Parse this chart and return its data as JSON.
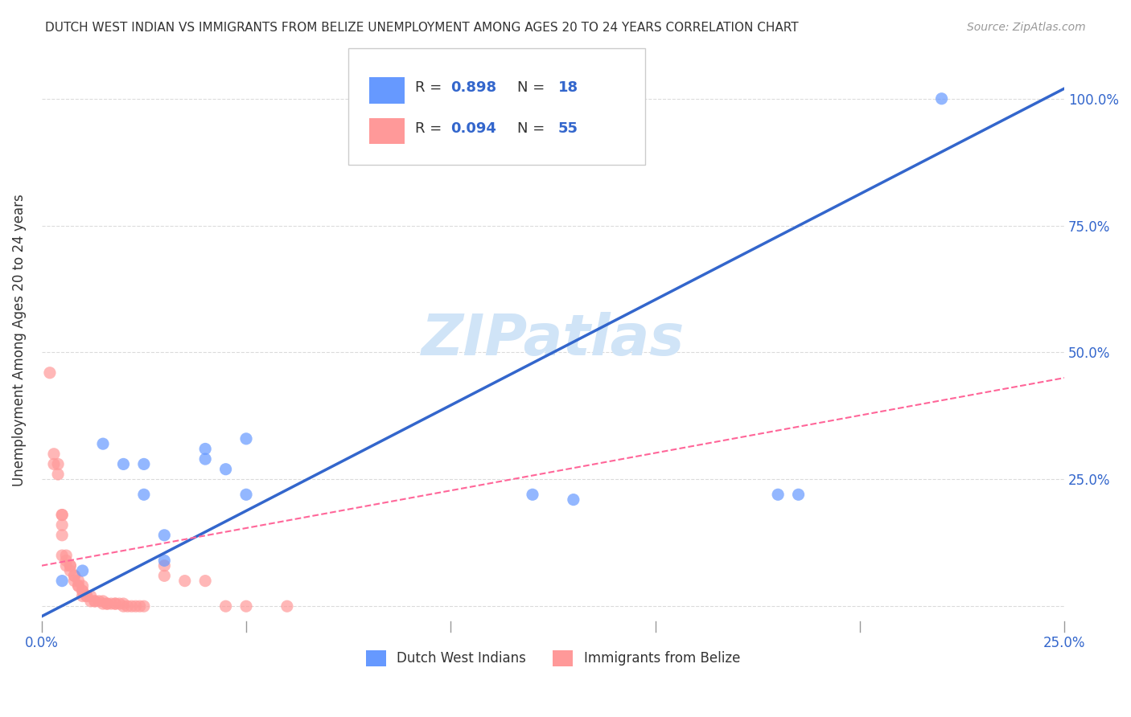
{
  "title": "DUTCH WEST INDIAN VS IMMIGRANTS FROM BELIZE UNEMPLOYMENT AMONG AGES 20 TO 24 YEARS CORRELATION CHART",
  "source": "Source: ZipAtlas.com",
  "xlabel": "",
  "ylabel": "Unemployment Among Ages 20 to 24 years",
  "xlim": [
    0.0,
    0.25
  ],
  "ylim": [
    -0.05,
    1.1
  ],
  "xticks": [
    0.0,
    0.05,
    0.1,
    0.15,
    0.2,
    0.25
  ],
  "xticklabels": [
    "0.0%",
    "",
    "",
    "",
    "",
    "25.0%"
  ],
  "yticks": [
    0.0,
    0.25,
    0.5,
    0.75,
    1.0
  ],
  "yticklabels": [
    "",
    "25.0%",
    "50.0%",
    "75.0%",
    "100.0%"
  ],
  "background_color": "#ffffff",
  "grid_color": "#cccccc",
  "watermark_text": "ZIPatlas",
  "watermark_color": "#d0e4f7",
  "blue_color": "#6699ff",
  "pink_color": "#ff9999",
  "blue_line_color": "#3366cc",
  "pink_line_color": "#ff6699",
  "legend_blue_R": "R = 0.898",
  "legend_blue_N": "N = 18",
  "legend_pink_R": "R = 0.094",
  "legend_pink_N": "N = 55",
  "legend_label_blue": "Dutch West Indians",
  "legend_label_pink": "Immigrants from Belize",
  "blue_scatter_x": [
    0.005,
    0.01,
    0.015,
    0.02,
    0.025,
    0.025,
    0.03,
    0.03,
    0.04,
    0.04,
    0.045,
    0.05,
    0.05,
    0.12,
    0.13,
    0.18,
    0.185,
    0.22
  ],
  "blue_scatter_y": [
    0.05,
    0.07,
    0.32,
    0.28,
    0.28,
    0.22,
    0.14,
    0.09,
    0.31,
    0.29,
    0.27,
    0.33,
    0.22,
    0.22,
    0.21,
    0.22,
    0.22,
    1.0
  ],
  "pink_scatter_x": [
    0.002,
    0.003,
    0.003,
    0.004,
    0.004,
    0.005,
    0.005,
    0.005,
    0.005,
    0.005,
    0.006,
    0.006,
    0.006,
    0.007,
    0.007,
    0.007,
    0.008,
    0.008,
    0.008,
    0.009,
    0.009,
    0.009,
    0.01,
    0.01,
    0.01,
    0.01,
    0.011,
    0.011,
    0.012,
    0.012,
    0.013,
    0.013,
    0.014,
    0.015,
    0.015,
    0.016,
    0.016,
    0.017,
    0.018,
    0.018,
    0.019,
    0.02,
    0.02,
    0.021,
    0.022,
    0.023,
    0.024,
    0.025,
    0.03,
    0.03,
    0.035,
    0.04,
    0.045,
    0.05,
    0.06
  ],
  "pink_scatter_y": [
    0.46,
    0.3,
    0.28,
    0.28,
    0.26,
    0.18,
    0.18,
    0.16,
    0.14,
    0.1,
    0.1,
    0.09,
    0.08,
    0.08,
    0.08,
    0.07,
    0.06,
    0.06,
    0.05,
    0.05,
    0.04,
    0.04,
    0.04,
    0.03,
    0.03,
    0.02,
    0.02,
    0.02,
    0.02,
    0.01,
    0.01,
    0.01,
    0.01,
    0.01,
    0.005,
    0.005,
    0.005,
    0.005,
    0.005,
    0.005,
    0.005,
    0.005,
    0.0,
    0.0,
    0.0,
    0.0,
    0.0,
    0.0,
    0.08,
    0.06,
    0.05,
    0.05,
    0.0,
    0.0,
    0.0
  ],
  "blue_line_x": [
    0.0,
    0.25
  ],
  "blue_line_y": [
    -0.02,
    1.02
  ],
  "pink_line_x": [
    0.0,
    0.25
  ],
  "pink_line_y": [
    0.08,
    0.45
  ]
}
